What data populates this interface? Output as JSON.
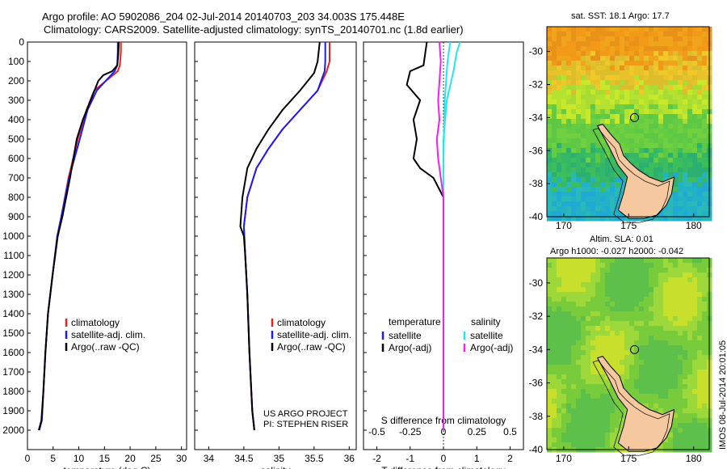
{
  "header": {
    "title_line1": "Argo profile: AO 5902086_204 02-Jul-2014 20140703_203 34.003S 175.448E",
    "title_line2": "Climatology: CARS2009. Satellite-adjusted climatology: synTS_20140701.nc (1.8d earlier)"
  },
  "map_top": {
    "title": "sat. SST: 18.1 Argo: 17.7"
  },
  "map_bottom": {
    "title_line1": "Altim. SLA: 0.01",
    "title_line2": "Argo h1000: -0.027 h2000: -0.042"
  },
  "side_stamp": "IMOS 08-Jul-2014 20:01:05",
  "credit": {
    "line1": "US ARGO PROJECT",
    "line2": "PI: STEPHEN RISER"
  },
  "colors": {
    "climatology": "#e8201c",
    "satellite": "#1c1cf0",
    "argo": "#000000",
    "sat_diff": "#22e8e8",
    "argo_diff_sal": "#f020f0",
    "land": "#f5c8a0"
  },
  "chart_data": [
    {
      "type": "line",
      "xlabel": "temperature (deg C)",
      "ylabel": "",
      "xlim": [
        0,
        31
      ],
      "ylim": [
        2100,
        0
      ],
      "xticks": [
        0,
        5,
        10,
        15,
        20,
        25,
        30
      ],
      "yticks": [
        0,
        100,
        200,
        300,
        400,
        500,
        600,
        700,
        800,
        900,
        1000,
        1100,
        1200,
        1300,
        1400,
        1500,
        1600,
        1700,
        1800,
        1900,
        2000
      ],
      "legend": [
        "climatology",
        "satellite-adj. clim.",
        "Argo(..raw -QC)"
      ],
      "legend_position": "lower-center",
      "series": [
        {
          "name": "climatology",
          "x": [
            18.2,
            18.2,
            18.0,
            17.6,
            13.0,
            11.5,
            9.8,
            8.0,
            6.6,
            5.8,
            4.9,
            4.0,
            3.5,
            3.1,
            2.8,
            2.3
          ],
          "y": [
            0,
            50,
            120,
            150,
            250,
            350,
            500,
            700,
            900,
            1000,
            1200,
            1400,
            1600,
            1800,
            1950,
            2000
          ]
        },
        {
          "name": "satellite-adj. clim.",
          "x": [
            17.6,
            17.6,
            17.5,
            17.0,
            13.5,
            11.7,
            10.2,
            8.1,
            6.6,
            5.8,
            4.9,
            4.0,
            3.5,
            3.1,
            2.8,
            2.3
          ],
          "y": [
            0,
            50,
            120,
            150,
            250,
            350,
            500,
            700,
            900,
            1000,
            1200,
            1400,
            1600,
            1800,
            1950,
            2000
          ]
        },
        {
          "name": "Argo(..raw -QC)",
          "x": [
            17.8,
            17.7,
            17.5,
            16.5,
            14.8,
            13.8,
            12.3,
            10.8,
            9.6,
            8.3,
            6.8,
            5.9,
            4.9,
            4.0,
            3.5,
            3.1,
            2.7,
            2.2
          ],
          "y": [
            0,
            60,
            120,
            150,
            170,
            200,
            300,
            400,
            500,
            700,
            900,
            1000,
            1200,
            1400,
            1600,
            1800,
            1950,
            2000
          ]
        }
      ]
    },
    {
      "type": "line",
      "xlabel": "salinity",
      "ylabel": "",
      "xlim": [
        33.8,
        36.1
      ],
      "ylim": [
        2100,
        0
      ],
      "xticks": [
        34,
        34.5,
        35,
        35.5,
        36
      ],
      "legend": [
        "climatology",
        "satellite-adj. clim.",
        "Argo(..raw -QC)"
      ],
      "legend_position": "lower-center",
      "series": [
        {
          "name": "climatology",
          "x": [
            35.72,
            35.72,
            35.68,
            35.55,
            35.3,
            35.05,
            34.85,
            34.68,
            34.55,
            34.5,
            34.52,
            34.55,
            34.58,
            34.62,
            34.65
          ],
          "y": [
            0,
            100,
            150,
            250,
            350,
            450,
            550,
            650,
            800,
            950,
            1100,
            1300,
            1600,
            1900,
            2000
          ]
        },
        {
          "name": "satellite-adj. clim.",
          "x": [
            35.66,
            35.66,
            35.65,
            35.55,
            35.3,
            35.05,
            34.85,
            34.68,
            34.55,
            34.5,
            34.52,
            34.55,
            34.58,
            34.62,
            34.65
          ],
          "y": [
            0,
            100,
            150,
            250,
            350,
            450,
            550,
            650,
            800,
            950,
            1100,
            1300,
            1600,
            1900,
            2000
          ]
        },
        {
          "name": "Argo(..raw -QC)",
          "x": [
            35.58,
            35.55,
            35.5,
            35.3,
            35.05,
            34.85,
            34.68,
            34.55,
            34.48,
            34.45,
            34.5,
            34.52,
            34.55,
            34.58,
            34.62,
            34.65
          ],
          "y": [
            0,
            100,
            160,
            250,
            350,
            450,
            550,
            650,
            800,
            950,
            1000,
            1100,
            1300,
            1600,
            1900,
            2000
          ]
        }
      ]
    },
    {
      "type": "line",
      "xlabel": "T difference from climatology",
      "xlabel_top": "S difference from climatology",
      "ylabel": "",
      "xlim": [
        -2.4,
        2.4
      ],
      "ylim": [
        2100,
        0
      ],
      "xticks": [
        -2,
        -1,
        0,
        1,
        2
      ],
      "xticks_top": [
        -0.5,
        -0.25,
        0,
        0.25,
        0.5
      ],
      "legend_left_title": "temperature",
      "legend_right_title": "salinity",
      "legend_left": [
        "satellite",
        "Argo(-adj)"
      ],
      "legend_right": [
        "satellite",
        "Argo(-adj)"
      ],
      "legend_position": "lower-center",
      "series": [
        {
          "name": "temperature satellite",
          "x": [
            0.5,
            0.4,
            0.3,
            0.1,
            0.0,
            0.0,
            0.0,
            0.0,
            0.0,
            0.0
          ],
          "y": [
            0,
            50,
            150,
            300,
            500,
            700,
            900,
            1200,
            1600,
            2000
          ]
        },
        {
          "name": "temperature Argo(-adj)",
          "x": [
            -0.5,
            -0.6,
            -1.0,
            -1.1,
            -0.7,
            -0.9,
            -0.8,
            -0.9,
            -0.7,
            -0.3,
            0.0,
            0.0,
            0.0,
            0.0,
            0.0
          ],
          "y": [
            0,
            120,
            150,
            220,
            300,
            400,
            500,
            600,
            650,
            700,
            800,
            1000,
            1300,
            1600,
            2000
          ]
        },
        {
          "name": "salinity satellite",
          "x": [
            0.05,
            0.03,
            0.01,
            0.0,
            0.0,
            0.0,
            0.0,
            0.0
          ],
          "y": [
            0,
            100,
            300,
            600,
            900,
            1200,
            1600,
            2000
          ]
        },
        {
          "name": "salinity Argo(-adj)",
          "x": [
            -0.03,
            -0.02,
            -0.04,
            -0.03,
            -0.05,
            -0.04,
            -0.02,
            0.0,
            0.0,
            0.0
          ],
          "y": [
            0,
            100,
            300,
            400,
            500,
            600,
            700,
            800,
            1000,
            2000
          ]
        }
      ]
    },
    {
      "type": "heatmap",
      "title": "sat. SST: 18.1 Argo: 17.7",
      "xlim": [
        168.7,
        181.2
      ],
      "ylim": [
        -40,
        -28.5
      ],
      "xticks": [
        170,
        175,
        180
      ],
      "yticks": [
        -30,
        -32,
        -34,
        -36,
        -38,
        -40
      ],
      "marker": {
        "x": 175.45,
        "y": -34.0
      }
    },
    {
      "type": "heatmap",
      "title": "Altim. SLA: 0.01",
      "xlim": [
        168.7,
        181.2
      ],
      "ylim": [
        -40,
        -28.5
      ],
      "xticks": [
        170,
        175,
        180
      ],
      "yticks": [
        -30,
        -32,
        -34,
        -36,
        -38,
        -40
      ],
      "marker": {
        "x": 175.45,
        "y": -34.0
      }
    }
  ]
}
